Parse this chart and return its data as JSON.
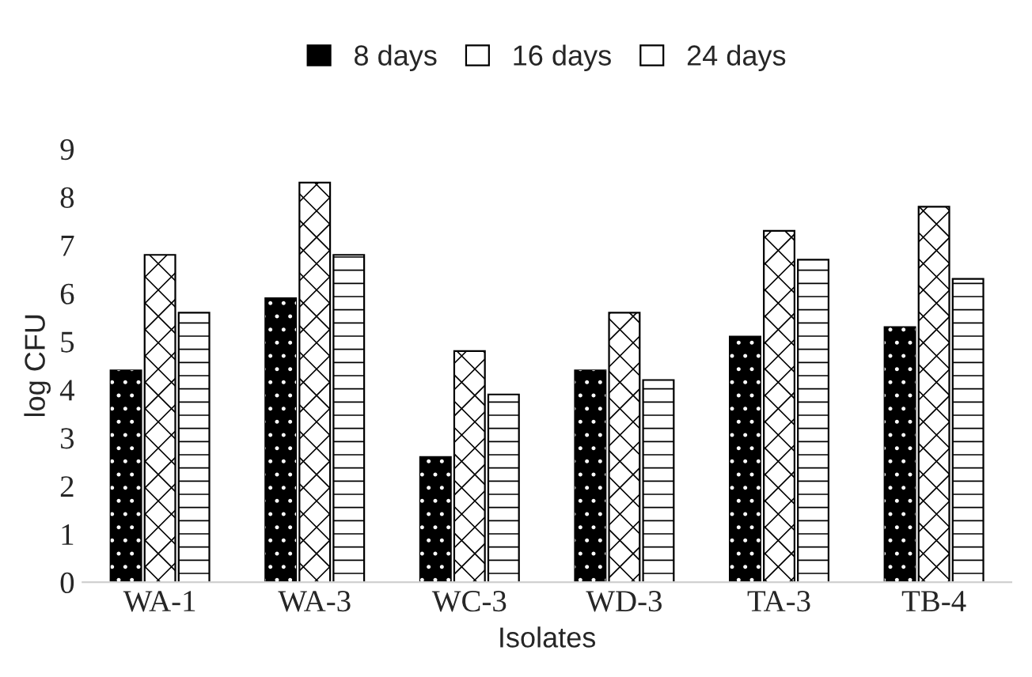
{
  "chart_data": {
    "type": "bar",
    "xlabel": "Isolates",
    "ylabel": "log CFU",
    "categories": [
      "WA-1",
      "WA-3",
      "WC-3",
      "WD-3",
      "TA-3",
      "TB-4"
    ],
    "series": [
      {
        "name": "8 days",
        "color": "#000000",
        "values": [
          4.4,
          5.9,
          2.6,
          4.4,
          5.1,
          5.3
        ]
      },
      {
        "name": "16 days",
        "color": "#ffffff",
        "values": [
          6.8,
          8.3,
          4.8,
          5.6,
          7.3,
          7.8
        ]
      },
      {
        "name": "24 days",
        "color": "#ffffff",
        "values": [
          5.6,
          6.8,
          3.9,
          4.2,
          6.7,
          6.3
        ]
      }
    ],
    "ylim": [
      0,
      9
    ],
    "yticks": [
      0,
      1,
      2,
      3,
      4,
      5,
      6,
      7,
      8,
      9
    ],
    "grid": false,
    "legend": "top"
  }
}
